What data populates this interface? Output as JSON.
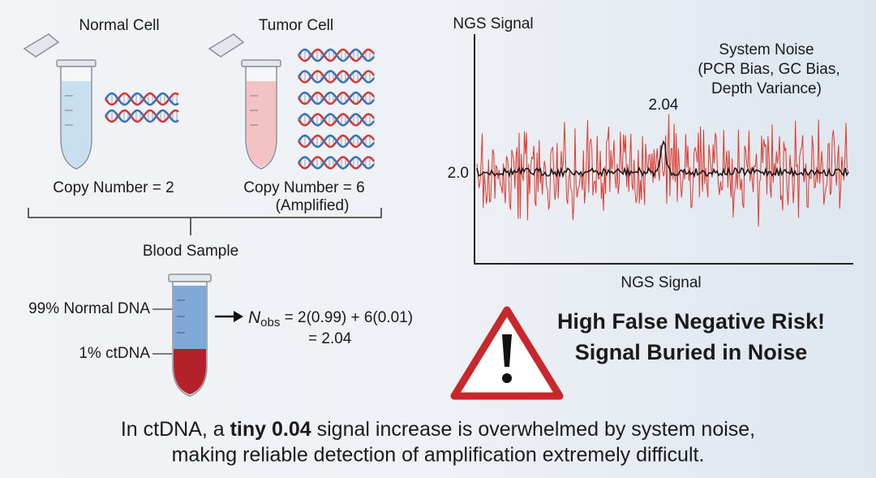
{
  "normal_cell": {
    "title": "Normal Cell",
    "caption": "Copy Number = 2"
  },
  "tumor_cell": {
    "title": "Tumor Cell",
    "caption": [
      "Copy Number = 6",
      "(Amplified)"
    ]
  },
  "blood_sample": {
    "title": "Blood Sample",
    "labels": [
      "99% Normal DNA",
      "1% ctDNA"
    ]
  },
  "equation": {
    "symbol": "N",
    "subscript": "obs",
    "expression": " = 2(0.99) + 6(0.01)",
    "result": "= 2.04"
  },
  "signal_plot": {
    "y_axis_title": "NGS Signal",
    "x_axis_title": "NGS Signal",
    "baseline_label": "2.0",
    "peak_label": "2.04",
    "noise_note": [
      "System Noise",
      "(PCR Bias, GC Bias,",
      "Depth Variance)"
    ]
  },
  "warning": [
    "High False Negative Risk!",
    "Signal Buried in Noise"
  ],
  "footer": {
    "line1": [
      "In ctDNA, a ",
      "tiny 0.04",
      " signal increase is overwhelmed by system noise,"
    ],
    "line2": "making reliable detection of amplification extremely difficult."
  }
}
